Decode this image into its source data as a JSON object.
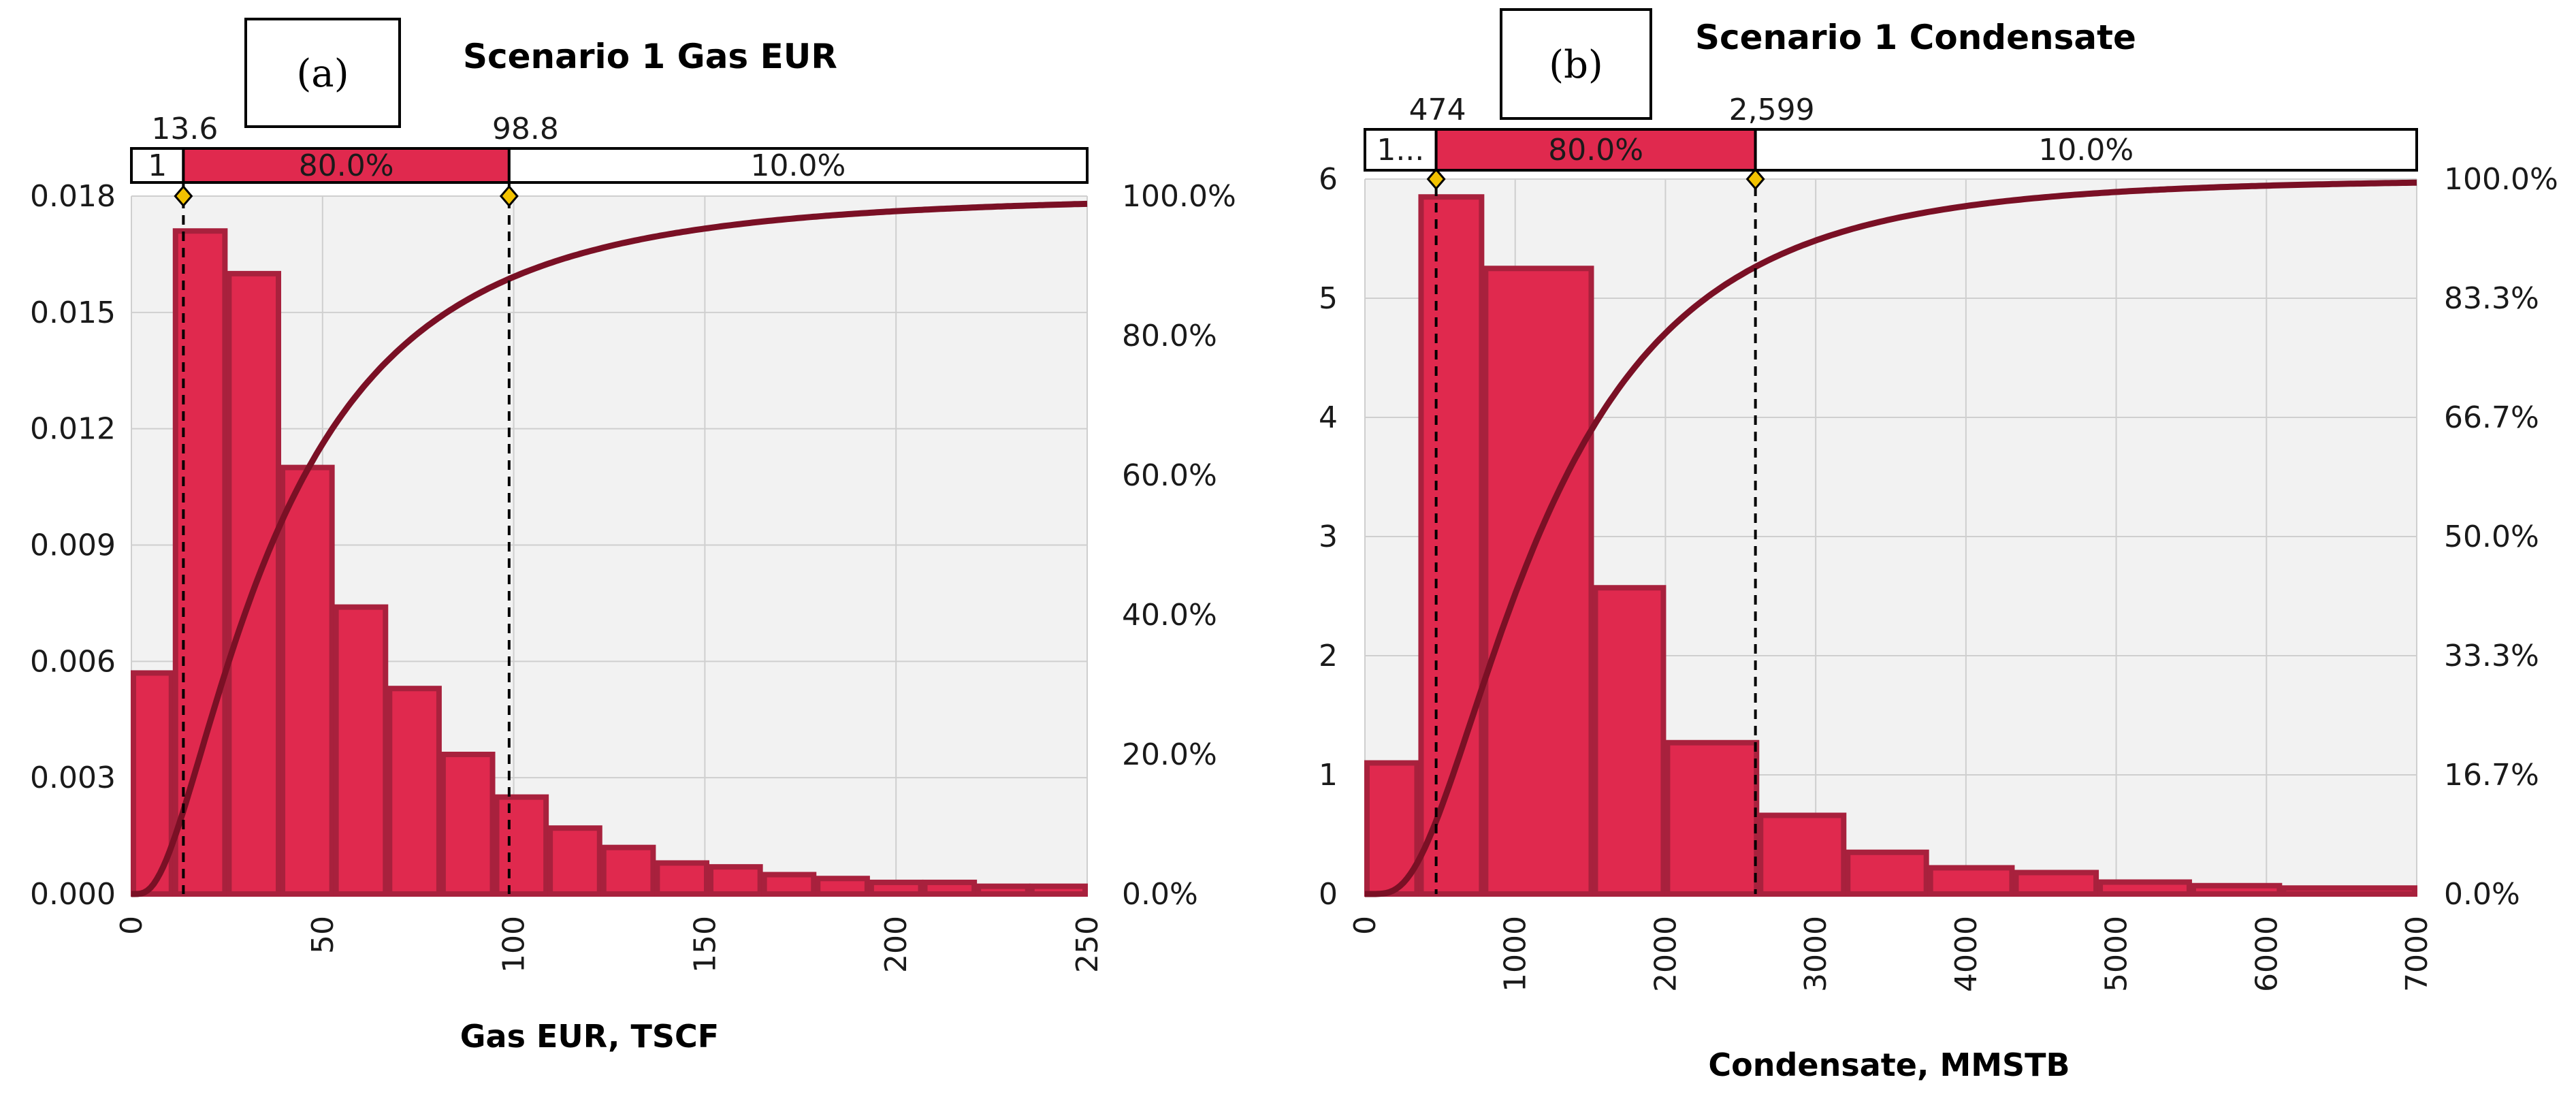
{
  "colors": {
    "bar_fill": "#e0294e",
    "bar_edge": "#a8213d",
    "cdf_line": "#7a1025",
    "plot_bg": "#f2f2f2",
    "grid": "#cfcfcf",
    "marker": "#f2c200"
  },
  "chart_data": [
    {
      "type": "bar",
      "panel_label": "(a)",
      "title": "Scenario 1 Gas EUR",
      "xlabel": "Gas EUR, TSCF",
      "ylabel": "",
      "xlim": [
        0,
        250
      ],
      "ylim": [
        0,
        0.018
      ],
      "x_ticks": [
        "0",
        "50",
        "100",
        "150",
        "200",
        "250"
      ],
      "y_ticks": [
        "0.000",
        "0.003",
        "0.006",
        "0.009",
        "0.012",
        "0.015",
        "0.018"
      ],
      "y2_ticks": [
        "0.0%",
        "20.0%",
        "40.0%",
        "60.0%",
        "80.0%",
        "100.0%"
      ],
      "bin_edges": [
        0,
        11,
        25,
        39,
        53,
        67,
        81,
        95,
        109,
        123,
        137,
        151,
        165,
        179,
        193,
        207,
        221,
        235,
        250
      ],
      "values": [
        0.0057,
        0.0171,
        0.016,
        0.011,
        0.0074,
        0.0053,
        0.0036,
        0.0025,
        0.0017,
        0.0012,
        0.0008,
        0.0007,
        0.0005,
        0.0004,
        0.0003,
        0.0003,
        0.0002,
        0.0002
      ],
      "cdf_params": {
        "mu": 3.6,
        "sigma": 0.84
      },
      "markers": [
        13.6,
        98.8
      ],
      "marker_labels": [
        "13.6",
        "98.8"
      ],
      "band_labels": [
        "1",
        "80.0%",
        "10.0%"
      ]
    },
    {
      "type": "bar",
      "panel_label": "(b)",
      "title": "Scenario 1 Condensate",
      "xlabel": "Condensate, MMSTB",
      "ylabel": "",
      "xlim": [
        0,
        7000
      ],
      "ylim": [
        0,
        6
      ],
      "x_ticks": [
        "0",
        "1000",
        "2000",
        "3000",
        "4000",
        "5000",
        "6000",
        "7000"
      ],
      "y_ticks": [
        "0",
        "1",
        "2",
        "3",
        "4",
        "5",
        "6"
      ],
      "y2_ticks": [
        "0.0%",
        "16.7%",
        "33.3%",
        "50.0%",
        "66.7%",
        "83.3%",
        "100.0%"
      ],
      "bin_edges": [
        0,
        360,
        790,
        1520,
        2000,
        2620,
        3200,
        3750,
        4320,
        4880,
        5500,
        6100,
        7000
      ],
      "values": [
        1.1,
        5.85,
        5.25,
        2.57,
        1.27,
        0.66,
        0.35,
        0.22,
        0.18,
        0.1,
        0.07,
        0.05
      ],
      "cdf_params": {
        "mu": 7.05,
        "sigma": 0.7
      },
      "markers": [
        474,
        2599
      ],
      "marker_labels": [
        "474",
        "2,599"
      ],
      "band_labels": [
        "1...",
        "80.0%",
        "10.0%"
      ]
    }
  ]
}
